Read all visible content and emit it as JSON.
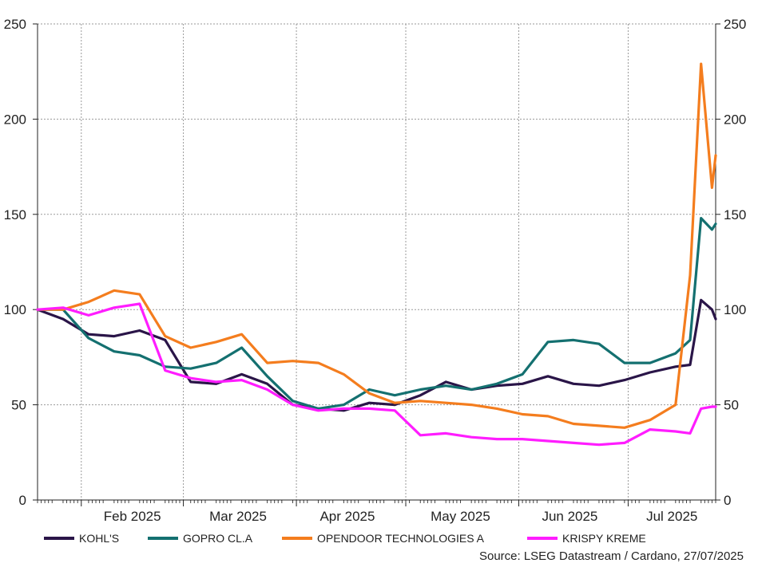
{
  "chart_data": {
    "type": "line",
    "title": "",
    "xlabel": "",
    "ylabel": "",
    "ylim": [
      0,
      250
    ],
    "y_ticks": [
      0,
      50,
      100,
      150,
      200,
      250
    ],
    "y_tick_labels": [
      "0",
      "50",
      "100",
      "150",
      "200",
      "250"
    ],
    "y_axis_labels_sides": "left-and-right",
    "x_month_labels": [
      "Feb 2025",
      "Mar 2025",
      "Apr 2025",
      "May 2025",
      "Jun 2025",
      "Jul 2025"
    ],
    "grid": true,
    "legend_placement": "bottom",
    "source": "Source: LSEG Datastream / Cardano, 27/07/2025",
    "x": [
      "2025-01-20",
      "2025-01-27",
      "2025-02-03",
      "2025-02-10",
      "2025-02-17",
      "2025-02-24",
      "2025-03-03",
      "2025-03-10",
      "2025-03-17",
      "2025-03-24",
      "2025-03-31",
      "2025-04-07",
      "2025-04-14",
      "2025-04-21",
      "2025-04-28",
      "2025-05-05",
      "2025-05-12",
      "2025-05-19",
      "2025-05-26",
      "2025-06-02",
      "2025-06-09",
      "2025-06-16",
      "2025-06-23",
      "2025-06-30",
      "2025-07-07",
      "2025-07-14",
      "2025-07-18",
      "2025-07-21",
      "2025-07-24",
      "2025-07-25"
    ],
    "series": [
      {
        "name": "KOHL'S",
        "color": "#2a1548",
        "values": [
          100,
          95,
          87,
          86,
          89,
          84,
          62,
          61,
          66,
          61,
          50,
          48,
          47,
          51,
          50,
          55,
          62,
          58,
          60,
          61,
          65,
          61,
          60,
          63,
          67,
          70,
          71,
          105,
          100,
          95
        ]
      },
      {
        "name": "GOPRO CL.A",
        "color": "#147070",
        "values": [
          100,
          100,
          85,
          78,
          76,
          70,
          69,
          72,
          80,
          65,
          52,
          48,
          50,
          58,
          55,
          58,
          60,
          58,
          61,
          66,
          83,
          84,
          82,
          72,
          72,
          77,
          84,
          148,
          142,
          145
        ]
      },
      {
        "name": "OPENDOOR TECHNOLOGIES A",
        "color": "#f47d1e",
        "values": [
          100,
          100,
          104,
          110,
          108,
          86,
          80,
          83,
          87,
          72,
          73,
          72,
          66,
          56,
          51,
          52,
          51,
          50,
          48,
          45,
          44,
          40,
          39,
          38,
          42,
          50,
          118,
          229,
          164,
          181
        ]
      },
      {
        "name": "KRISPY KREME",
        "color": "#ff1dff",
        "values": [
          100,
          101,
          97,
          101,
          103,
          68,
          64,
          62,
          63,
          58,
          50,
          47,
          48,
          48,
          47,
          34,
          35,
          33,
          32,
          32,
          31,
          30,
          29,
          30,
          37,
          36,
          35,
          48,
          49,
          49
        ]
      }
    ]
  }
}
